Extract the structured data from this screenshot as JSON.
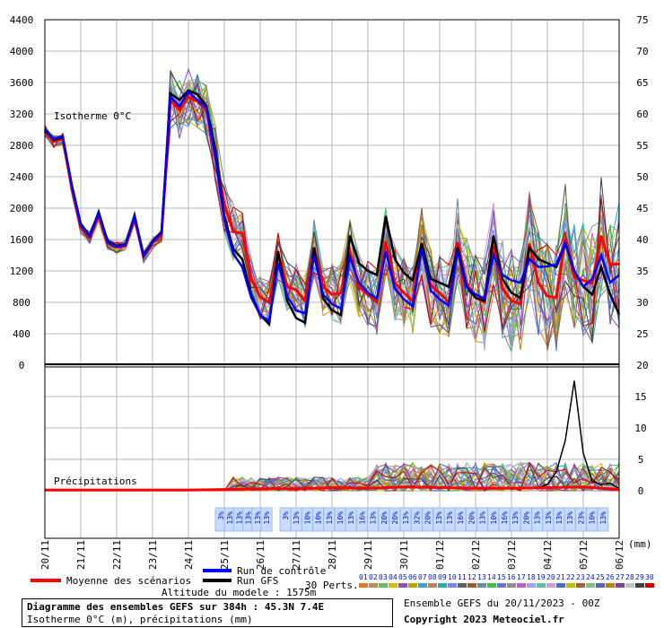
{
  "chart_data": {
    "type": "line",
    "title": "Diagramme des ensembles GEFS sur 384h : 45.3N 7.4E",
    "subtitle": "Isotherme 0°C (m), précipitations (mm)",
    "x_labels": [
      "20/11",
      "21/11",
      "22/11",
      "23/11",
      "24/11",
      "25/11",
      "26/11",
      "27/11",
      "28/11",
      "29/11",
      "30/11",
      "01/12",
      "02/12",
      "03/12",
      "04/12",
      "05/12",
      "06/12"
    ],
    "x_range_hours": [
      0,
      384
    ],
    "upper_panel": {
      "label": "Isotherme 0°C",
      "yleft_ticks": [
        0,
        400,
        800,
        1200,
        1600,
        2000,
        2400,
        2800,
        3200,
        3600,
        4000,
        4400
      ],
      "yright_ticks": [
        20,
        25,
        30,
        35,
        40,
        45,
        50,
        55,
        60,
        65,
        70,
        75
      ],
      "ylim": [
        0,
        4400
      ],
      "series": [
        {
          "name": "Moyenne des scénarios",
          "color": "#ff0000",
          "x": [
            0,
            6,
            12,
            18,
            24,
            30,
            36,
            42,
            48,
            54,
            60,
            66,
            72,
            78,
            84,
            90,
            96,
            102,
            108,
            114,
            120,
            126,
            132,
            138,
            144,
            150,
            156,
            162,
            168,
            174,
            180,
            186,
            192,
            198,
            204,
            210,
            216,
            222,
            228,
            234,
            240,
            246,
            252,
            258,
            264,
            270,
            276,
            282,
            288,
            294,
            300,
            306,
            312,
            318,
            324,
            330,
            336,
            342,
            348,
            354,
            360,
            366,
            372,
            378,
            384
          ],
          "y": [
            2980,
            2850,
            2880,
            2250,
            1750,
            1620,
            1900,
            1550,
            1500,
            1520,
            1880,
            1380,
            1560,
            1650,
            3380,
            3250,
            3420,
            3360,
            3250,
            2700,
            2050,
            1700,
            1680,
            1100,
            870,
            800,
            1400,
            1000,
            960,
            820,
            1500,
            1000,
            900,
            920,
            1450,
            1000,
            900,
            800,
            1580,
            1050,
            920,
            820,
            1560,
            1020,
            920,
            800,
            1560,
            1040,
            860,
            800,
            1520,
            980,
            820,
            780,
            1550,
            1050,
            880,
            860,
            1610,
            1120,
            1080,
            1040,
            1650,
            1280,
            1290
          ]
        },
        {
          "name": "Run GFS",
          "color": "#000000",
          "x": [
            0,
            6,
            12,
            18,
            24,
            30,
            36,
            42,
            48,
            54,
            60,
            66,
            72,
            78,
            84,
            90,
            96,
            102,
            108,
            114,
            120,
            126,
            132,
            138,
            144,
            150,
            156,
            162,
            168,
            174,
            180,
            186,
            192,
            198,
            204,
            210,
            216,
            222,
            228,
            234,
            240,
            246,
            252,
            258,
            264,
            270,
            276,
            282,
            288,
            294,
            300,
            306,
            312,
            318,
            324,
            330,
            336,
            342,
            348,
            354,
            360,
            366,
            372,
            378,
            384
          ],
          "y": [
            3000,
            2870,
            2900,
            2300,
            1800,
            1650,
            1950,
            1580,
            1520,
            1540,
            1900,
            1400,
            1580,
            1700,
            3460,
            3380,
            3500,
            3450,
            3300,
            2750,
            1900,
            1480,
            1350,
            900,
            640,
            520,
            1450,
            820,
            600,
            540,
            1500,
            850,
            700,
            640,
            1650,
            1300,
            1200,
            1150,
            1900,
            1350,
            1180,
            1080,
            1550,
            1100,
            1050,
            1000,
            1500,
            1000,
            860,
            820,
            1650,
            1100,
            920,
            860,
            1500,
            1350,
            1300,
            1250,
            1550,
            1200,
            1000,
            900,
            1250,
            900,
            650
          ]
        },
        {
          "name": "Run de contrôle",
          "color": "#0000ff",
          "x": [
            0,
            6,
            12,
            18,
            24,
            30,
            36,
            42,
            48,
            54,
            60,
            66,
            72,
            78,
            84,
            90,
            96,
            102,
            108,
            114,
            120,
            126,
            132,
            138,
            144,
            150,
            156,
            162,
            168,
            174,
            180,
            186,
            192,
            198,
            204,
            210,
            216,
            222,
            228,
            234,
            240,
            246,
            252,
            258,
            264,
            270,
            276,
            282,
            288,
            294,
            300,
            306,
            312,
            318,
            324,
            330,
            336,
            342,
            348,
            354,
            360,
            366,
            372,
            378,
            384
          ],
          "y": [
            3010,
            2880,
            2920,
            2280,
            1780,
            1640,
            1930,
            1560,
            1510,
            1530,
            1890,
            1390,
            1570,
            1680,
            3420,
            3300,
            3480,
            3380,
            3280,
            2650,
            1850,
            1420,
            1250,
            860,
            640,
            560,
            1300,
            880,
            700,
            660,
            1400,
            900,
            780,
            720,
            1380,
            1050,
            920,
            850,
            1450,
            980,
            840,
            750,
            1480,
            950,
            840,
            760,
            1450,
            1000,
            900,
            850,
            1400,
            1150,
            1080,
            1050,
            1350,
            1250,
            1260,
            1280,
            1560,
            1200,
            1000,
            1100,
            1400,
            1050,
            1150
          ]
        }
      ]
    },
    "lower_panel": {
      "label": "Précipitations",
      "unit": "(mm)",
      "yright_ticks": [
        0,
        5,
        10,
        15
      ],
      "ylim": [
        0,
        20
      ],
      "mean_series": {
        "name": "Moyenne des scénarios",
        "color": "#ff0000",
        "x": [
          0,
          24,
          48,
          72,
          96,
          120,
          144,
          168,
          192,
          216,
          240,
          264,
          288,
          312,
          336,
          360,
          384
        ],
        "y": [
          0.1,
          0.1,
          0.1,
          0.1,
          0.1,
          0.2,
          0.3,
          0.3,
          0.5,
          0.4,
          0.6,
          0.5,
          0.4,
          0.4,
          0.5,
          0.6,
          0.2
        ]
      },
      "peak_member": {
        "name": "Run GFS",
        "color": "#000000",
        "x": [
          330,
          336,
          342,
          348,
          354,
          360,
          366,
          372,
          378,
          384
        ],
        "y": [
          0.5,
          1.0,
          3.0,
          8.0,
          17.5,
          6.0,
          1.5,
          1.0,
          1.2,
          0.3
        ]
      }
    },
    "percent_labels": [
      "3%",
      "13%",
      "13%",
      "13%",
      "13%",
      "13%",
      "3%",
      "13%",
      "10%",
      "10%",
      "13%",
      "10%",
      "13%",
      "16%",
      "13%",
      "20%",
      "20%",
      "13%",
      "32%",
      "20%",
      "13%",
      "13%",
      "16%",
      "20%",
      "13%",
      "10%",
      "16%",
      "13%",
      "20%",
      "13%",
      "13%",
      "13%",
      "13%",
      "23%",
      "10%",
      "13%"
    ],
    "legend": {
      "mean_label": "Moyenne des scénarios",
      "control_label": "Run de contrôle",
      "gfs_label": "Run GFS",
      "perts_label": "30 Perts.",
      "member_numbers": [
        "01",
        "02",
        "03",
        "04",
        "05",
        "06",
        "07",
        "08",
        "09",
        "10",
        "11",
        "12",
        "13",
        "14",
        "15",
        "16",
        "17",
        "18",
        "19",
        "20",
        "21",
        "22",
        "23",
        "24",
        "25",
        "26",
        "27",
        "28",
        "29",
        "30"
      ],
      "member_colors": [
        "#e07a20",
        "#b09060",
        "#60c060",
        "#d0c000",
        "#9050c0",
        "#c0a000",
        "#40a0d0",
        "#c08060",
        "#20b0b0",
        "#8080ff",
        "#606060",
        "#a05a2a",
        "#6090a0",
        "#40c040",
        "#7070d0",
        "#909090",
        "#c060c0",
        "#a0a0ff",
        "#60c0a0",
        "#d0a0d0",
        "#4070c0",
        "#c0c000",
        "#a06040",
        "#80c080",
        "#6060c0",
        "#c08000",
        "#8040a0",
        "#c0c0c0",
        "#404040",
        "#d00000"
      ]
    },
    "altitude_label": "Altitude du modele : 1575m",
    "run_label": "Ensemble GEFS du 20/11/2023 - 00Z",
    "copyright": "Copyright 2023 Meteociel.fr"
  }
}
